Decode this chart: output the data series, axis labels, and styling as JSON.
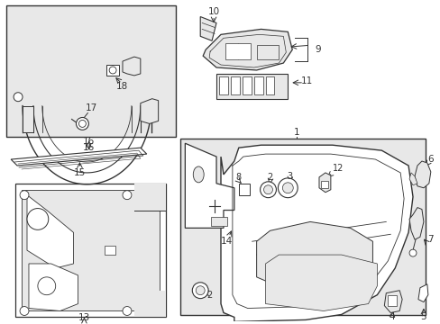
{
  "bg_color": "#ffffff",
  "part_bg": "#e8e8e8",
  "line_color": "#333333",
  "figsize": [
    4.89,
    3.6
  ],
  "dpi": 100
}
